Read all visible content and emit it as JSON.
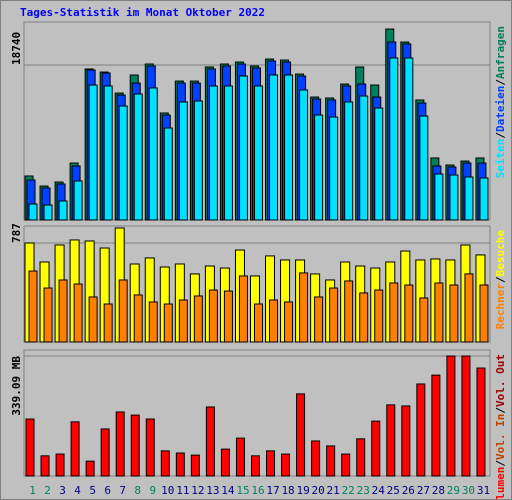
{
  "chart_data": [
    {
      "type": "bar",
      "title": "Tages-Statistik im Monat Oktober 2022",
      "legend_separator": "/",
      "series": [
        {
          "name": "Anfragen",
          "color": "#00805c",
          "values": [
            5320,
            4110,
            4590,
            6890,
            18260,
            17890,
            15350,
            17530,
            18860,
            12940,
            16800,
            16800,
            18500,
            18860,
            19100,
            18620,
            19460,
            19340,
            17650,
            14870,
            14750,
            16440,
            18500,
            16320,
            23090,
            21520,
            14510,
            7500,
            6650,
            7130,
            7500
          ]
        },
        {
          "name": "Dateien",
          "color": "#0040ff",
          "values": [
            4840,
            3870,
            4350,
            6530,
            18140,
            17770,
            15110,
            16560,
            18620,
            12690,
            16560,
            16560,
            18260,
            18620,
            18860,
            18380,
            19220,
            19100,
            17410,
            14630,
            14510,
            16200,
            16440,
            14870,
            21520,
            21280,
            14150,
            6530,
            6410,
            6890,
            6890
          ]
        },
        {
          "name": "Seiten",
          "color": "#00e0ff",
          "values": [
            1930,
            1810,
            2300,
            4720,
            16320,
            16200,
            13780,
            15230,
            15960,
            11120,
            14270,
            14390,
            16200,
            16200,
            17410,
            16200,
            17530,
            17530,
            15720,
            12690,
            12450,
            14270,
            14990,
            13540,
            19590,
            19590,
            12570,
            5560,
            5440,
            5200,
            5080
          ]
        }
      ],
      "ylim": [
        0,
        23940
      ],
      "yticks": [
        18740
      ]
    },
    {
      "type": "bar",
      "legend_separator": "/",
      "series": [
        {
          "name": "Besuche",
          "color": "#ffff00",
          "values": [
            787,
            636,
            771,
            811,
            803,
            747,
            906,
            620,
            668,
            596,
            620,
            541,
            604,
            588,
            731,
            525,
            684,
            652,
            652,
            541,
            493,
            636,
            604,
            588,
            636,
            723,
            652,
            660,
            652,
            771,
            692
          ]
        },
        {
          "name": "Rechner",
          "color": "#ff8000",
          "values": [
            564,
            429,
            493,
            461,
            358,
            302,
            493,
            374,
            318,
            302,
            334,
            366,
            413,
            405,
            525,
            302,
            334,
            318,
            549,
            358,
            429,
            485,
            390,
            413,
            469,
            453,
            350,
            469,
            453,
            541,
            453
          ]
        }
      ],
      "ylim": [
        0,
        922
      ],
      "yticks": [
        787
      ]
    },
    {
      "type": "bar",
      "legend_separator": "/",
      "categories": [
        "1",
        "2",
        "3",
        "4",
        "5",
        "6",
        "7",
        "8",
        "9",
        "10",
        "11",
        "12",
        "13",
        "14",
        "15",
        "16",
        "17",
        "18",
        "19",
        "20",
        "21",
        "22",
        "23",
        "24",
        "25",
        "26",
        "27",
        "28",
        "29",
        "30",
        "31"
      ],
      "category_colors": [
        "#00805c",
        "#00805c",
        "#000080",
        "#000080",
        "#000080",
        "#000080",
        "#000080",
        "#00805c",
        "#00805c",
        "#000080",
        "#000080",
        "#000080",
        "#000080",
        "#000080",
        "#00805c",
        "#00805c",
        "#000080",
        "#000080",
        "#000080",
        "#000080",
        "#000080",
        "#00805c",
        "#00805c",
        "#000080",
        "#000080",
        "#000080",
        "#000080",
        "#000080",
        "#00805c",
        "#00805c",
        "#000080"
      ],
      "series": [
        {
          "name": "Volumen",
          "color": "#ff0000",
          "values": [
            161,
            57,
            62,
            153,
            42,
            133,
            181,
            172,
            161,
            71,
            65,
            59,
            195,
            76,
            107,
            57,
            71,
            62,
            232,
            99,
            85,
            62,
            105,
            155,
            201,
            198,
            260,
            285,
            339,
            339,
            305
          ]
        }
      ],
      "extra_legend": [
        {
          "name": "Vol. In",
          "color": "#c04000"
        },
        {
          "name": "Vol. Out",
          "color": "#a00000"
        }
      ],
      "ylim": [
        0,
        356
      ],
      "yticks": [
        {
          "value": 339.09,
          "label": "339.09 MB"
        }
      ]
    }
  ]
}
